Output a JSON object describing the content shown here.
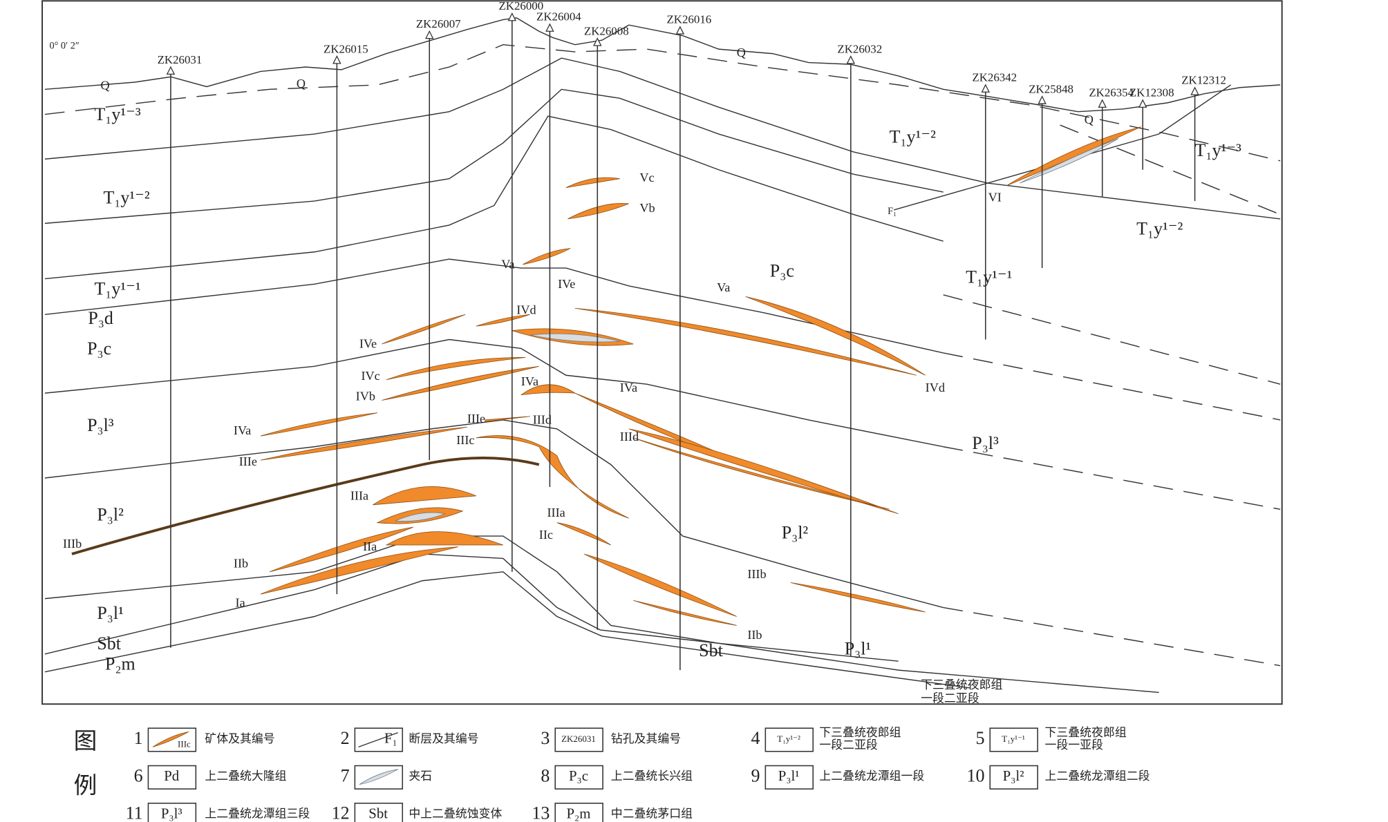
{
  "coordinate": "0° 0′ 2″",
  "boreholes": [
    "ZK26031",
    "ZK26015",
    "ZK26007",
    "ZK26000",
    "ZK26004",
    "ZK26008",
    "ZK26016",
    "ZK26032",
    "ZK26342",
    "ZK25848",
    "ZK26354",
    "ZK12308",
    "ZK12312"
  ],
  "strata": [
    "Q",
    "Q",
    "Q",
    "Q",
    "T₁y¹⁻³",
    "T₁y¹⁻²",
    "T₁y¹⁻¹",
    "P₃d",
    "P₃c",
    "P₃l³",
    "P₃l²",
    "P₃l¹",
    "Sbt",
    "P₂m",
    "T₁y¹⁻²",
    "T₁y¹⁻³",
    "T₁y¹⁻²",
    "T₁y¹⁻¹",
    "P₃c",
    "P₃l³",
    "P₃l²",
    "Sbt",
    "P₃l¹"
  ],
  "ore_bodies": [
    "Vc",
    "Vb",
    "Va",
    "Va",
    "IVe",
    "IVd",
    "IVe",
    "IVc",
    "IVb",
    "IVa",
    "IVa",
    "IVd",
    "IVa",
    "IIIe",
    "IIId",
    "IIIc",
    "IIIe",
    "IIId",
    "IIIa",
    "IIIa",
    "IIc",
    "IIb",
    "IIa",
    "Ia",
    "IIIb",
    "IIIb",
    "IIb",
    "VI"
  ],
  "fault": "F₁",
  "note": [
    "下三叠统夜郎组",
    "一段二亚段"
  ],
  "legend": {
    "title": [
      "图",
      "例"
    ],
    "items": [
      {
        "number": "1",
        "symbol": "IIIc",
        "text": [
          "矿体及其编号"
        ]
      },
      {
        "number": "2",
        "symbol": "F₁",
        "text": [
          "断层及其编号"
        ]
      },
      {
        "number": "3",
        "symbol": "ZK26031",
        "text": [
          "钻孔及其编号"
        ]
      },
      {
        "number": "4",
        "symbol": "T₁y¹⁻²",
        "text": [
          "下三叠统夜郎组",
          "一段二亚段"
        ]
      },
      {
        "number": "5",
        "symbol": "T₁y¹⁻¹",
        "text": [
          "下三叠统夜郎组",
          "一段一亚段"
        ]
      },
      {
        "number": "6",
        "symbol": "Pd",
        "text": [
          "上二叠统大隆组"
        ]
      },
      {
        "number": "7",
        "text": [
          "夹石"
        ]
      },
      {
        "number": "8",
        "symbol": "P₃c",
        "text": [
          "上二叠统长兴组"
        ]
      },
      {
        "number": "9",
        "symbol": "P₃l¹",
        "text": [
          "上二叠统龙潭组一段"
        ]
      },
      {
        "number": "10",
        "symbol": "P₃l²",
        "text": [
          "上二叠统龙潭组二段"
        ]
      },
      {
        "number": "11",
        "symbol": "P₃l³",
        "text": [
          "上二叠统龙潭组三段"
        ]
      },
      {
        "number": "12",
        "symbol": "Sbt",
        "text": [
          "中上二叠统蚀变体"
        ]
      },
      {
        "number": "13",
        "symbol": "P₂m",
        "text": [
          "中二叠统茅口组"
        ]
      }
    ]
  }
}
